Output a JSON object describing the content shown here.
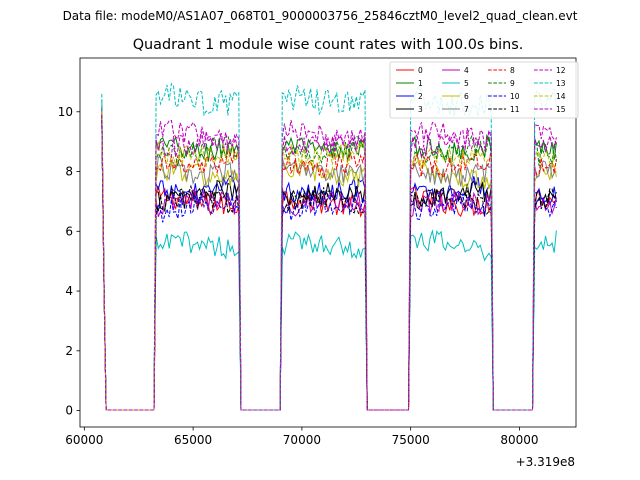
{
  "chart_data": {
    "type": "line",
    "suptitle": "Data file: modeM0/AS1A07_068T01_9000003756_25846cztM0_level2_quad_clean.evt",
    "title": "Quadrant 1 module wise count rates with 100.0s bins.",
    "xlabel": "",
    "ylabel": "",
    "x_offset_label": "+3.319e8",
    "xlim": [
      59800,
      82600
    ],
    "ylim": [
      -0.55,
      11.8
    ],
    "xticks": [
      60000,
      65000,
      70000,
      75000,
      80000
    ],
    "yticks": [
      0,
      2,
      4,
      6,
      8,
      10
    ],
    "segments": [
      [
        63300,
        67100
      ],
      [
        69100,
        72900
      ],
      [
        75000,
        78700
      ],
      [
        80700,
        81700
      ]
    ],
    "gaps": [
      [
        60800,
        63300
      ],
      [
        67100,
        69100
      ],
      [
        72900,
        75000
      ],
      [
        78700,
        80700
      ]
    ],
    "legend_position": "top-right",
    "legend_columns": 4,
    "series": [
      {
        "name": "0",
        "color": "#ff0000",
        "style": "solid",
        "mean": 7.0,
        "start": 10.0
      },
      {
        "name": "1",
        "color": "#008000",
        "style": "solid",
        "mean": 8.8,
        "start": 10.2
      },
      {
        "name": "2",
        "color": "#0000ff",
        "style": "solid",
        "mean": 7.4,
        "start": 9.8
      },
      {
        "name": "3",
        "color": "#000000",
        "style": "solid",
        "mean": 7.2,
        "start": 9.9
      },
      {
        "name": "4",
        "color": "#bf00bf",
        "style": "solid",
        "mean": 6.9,
        "start": 9.7
      },
      {
        "name": "5",
        "color": "#00bfbf",
        "style": "solid",
        "mean": 5.5,
        "start": 10.4
      },
      {
        "name": "6",
        "color": "#bfbf00",
        "style": "solid",
        "mean": 7.9,
        "start": 9.9
      },
      {
        "name": "7",
        "color": "#808080",
        "style": "solid",
        "mean": 8.0,
        "start": 10.0
      },
      {
        "name": "8",
        "color": "#ff0000",
        "style": "dashed",
        "mean": 8.3,
        "start": 10.1
      },
      {
        "name": "9",
        "color": "#008000",
        "style": "dashed",
        "mean": 8.7,
        "start": 10.0
      },
      {
        "name": "10",
        "color": "#0000ff",
        "style": "dashed",
        "mean": 6.8,
        "start": 9.6
      },
      {
        "name": "11",
        "color": "#000000",
        "style": "dashed",
        "mean": 7.0,
        "start": 9.8
      },
      {
        "name": "12",
        "color": "#bf00bf",
        "style": "dashed",
        "mean": 9.2,
        "start": 10.1
      },
      {
        "name": "13",
        "color": "#00bfbf",
        "style": "dashed",
        "mean": 10.4,
        "start": 10.6
      },
      {
        "name": "14",
        "color": "#bfbf00",
        "style": "dashed",
        "mean": 8.6,
        "start": 10.0
      },
      {
        "name": "15",
        "color": "#bf00bf",
        "style": "dashed",
        "mean": 9.0,
        "start": 9.9
      }
    ]
  }
}
